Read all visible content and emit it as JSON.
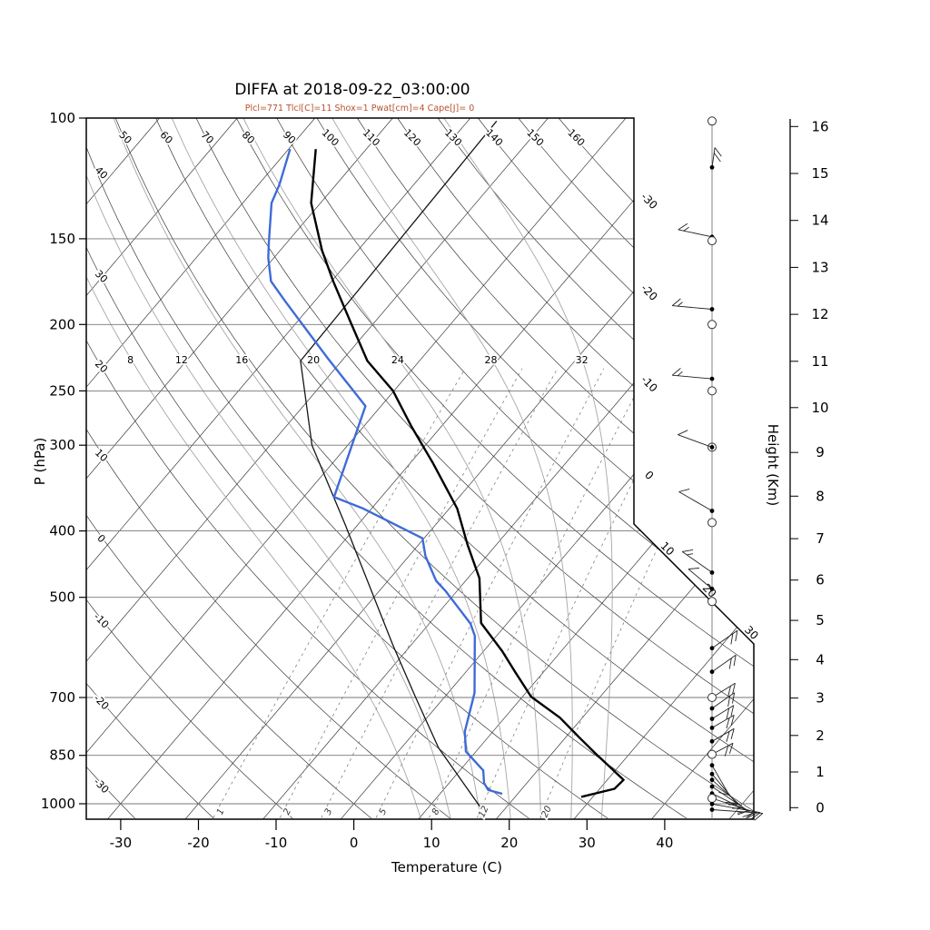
{
  "header": {
    "title": "DIFFA at 2018-09-22_03:00:00",
    "subtitle": "Plcl=771 Tlcl[C]=11 Shox=1 Pwat[cm]=4 Cape[J]= 0"
  },
  "axes": {
    "left_label": "P (hPa)",
    "right_label": "Height (Km)",
    "bottom_label": "Temperature (C)",
    "pressure_ticks": [
      100,
      150,
      200,
      250,
      300,
      400,
      500,
      700,
      850,
      1000
    ],
    "height_ticks_km": [
      0,
      1,
      2,
      3,
      4,
      5,
      6,
      7,
      8,
      9,
      10,
      11,
      12,
      13,
      14,
      15,
      16
    ],
    "temperature_ticks_c": [
      -30,
      -20,
      -10,
      0,
      10,
      20,
      30,
      40
    ]
  },
  "colors": {
    "subtitle": "#b9512f",
    "thin_line": "#3a3a3a",
    "grid_line": "#777777",
    "moist_adiabat": "#a6a6a6",
    "mixing_ratio": "#808080",
    "temperature_profile": "#000000",
    "dewpoint_profile": "#3f6bd8",
    "parcel_line": "#151515",
    "barb": "#222222"
  },
  "chart_data": {
    "type": "line",
    "subtype": "skewt-log-p",
    "pressure_range_hpa": [
      100,
      1050
    ],
    "skew": "isotherms tilt 45deg up-right",
    "isotherms_c": {
      "start": -110,
      "end": 50,
      "step": 10,
      "right_edge_labels": [
        -30,
        -20,
        -10,
        0,
        10,
        20,
        30
      ]
    },
    "dry_adiabats_c": {
      "start": -30,
      "end": 160,
      "step": 10,
      "top_labels": [
        50,
        60,
        70,
        80,
        90,
        100,
        110,
        120,
        130,
        140,
        150,
        160
      ],
      "left_labels": [
        40,
        30,
        20,
        10,
        0,
        -10,
        -20,
        -30
      ]
    },
    "moist_adiabats_c": {
      "values": [
        8,
        12,
        16,
        20,
        24,
        28,
        32
      ],
      "label_pressure_hpa": 225
    },
    "mixing_ratio_g_kg": {
      "values": [
        1,
        2,
        3,
        5,
        8,
        12,
        20
      ]
    },
    "temperature_profile_p_t": [
      [
        977,
        28.5
      ],
      [
        951,
        31.9
      ],
      [
        923,
        32.1
      ],
      [
        887,
        29.2
      ],
      [
        847,
        25.8
      ],
      [
        801,
        21.8
      ],
      [
        749,
        17.1
      ],
      [
        698,
        11.1
      ],
      [
        643,
        6.4
      ],
      [
        599,
        2.4
      ],
      [
        545,
        -3.4
      ],
      [
        469,
        -8.5
      ],
      [
        419,
        -13.7
      ],
      [
        371,
        -19.0
      ],
      [
        319,
        -27.0
      ],
      [
        282,
        -33.8
      ],
      [
        250,
        -40.1
      ],
      [
        226,
        -46.7
      ],
      [
        198,
        -53.2
      ],
      [
        173,
        -59.8
      ],
      [
        156,
        -64.6
      ],
      [
        133,
        -71.2
      ],
      [
        111,
        -76.5
      ]
    ],
    "dewpoint_profile_p_t": [
      [
        967,
        18.0
      ],
      [
        955,
        15.8
      ],
      [
        933,
        14.5
      ],
      [
        894,
        13.0
      ],
      [
        839,
        8.7
      ],
      [
        785,
        6.4
      ],
      [
        689,
        3.4
      ],
      [
        569,
        -2.8
      ],
      [
        546,
        -4.7
      ],
      [
        490,
        -11.4
      ],
      [
        473,
        -13.8
      ],
      [
        435,
        -17.9
      ],
      [
        410,
        -20.2
      ],
      [
        371,
        -31.1
      ],
      [
        357,
        -36.1
      ],
      [
        263,
        -42.0
      ],
      [
        224,
        -52.1
      ],
      [
        185,
        -63.8
      ],
      [
        173,
        -67.8
      ],
      [
        160,
        -70.7
      ],
      [
        152,
        -72.3
      ],
      [
        133,
        -76.3
      ],
      [
        125,
        -77.3
      ],
      [
        111,
        -79.8
      ]
    ],
    "parcel_line_p_t": [
      [
        1009,
        16.5
      ],
      [
        829,
        4.8
      ],
      [
        698,
        -3.8
      ],
      [
        586,
        -12.4
      ],
      [
        392,
        -31.6
      ],
      [
        300,
        -44.6
      ],
      [
        226,
        -55.3
      ],
      [
        101,
        -56.3
      ]
    ],
    "wind_levels": [
      {
        "p": 101,
        "marker": "open"
      },
      {
        "p": 118,
        "marker": "dot",
        "dir": 8,
        "len": 22,
        "full": 2,
        "half": 0
      },
      {
        "p": 149,
        "marker": "dot",
        "dir": -78,
        "len": 38,
        "full": 1,
        "half": 1
      },
      {
        "p": 151,
        "marker": "open"
      },
      {
        "p": 190,
        "marker": "dot",
        "dir": -85,
        "len": 44,
        "full": 1,
        "half": 1
      },
      {
        "p": 200,
        "marker": "open"
      },
      {
        "p": 240,
        "marker": "dot",
        "dir": -85,
        "len": 44,
        "full": 1,
        "half": 1
      },
      {
        "p": 250,
        "marker": "open"
      },
      {
        "p": 302,
        "marker": "circled-dot",
        "dir": -70,
        "len": 40,
        "full": 1,
        "half": 0
      },
      {
        "p": 374,
        "marker": "dot",
        "dir": -60,
        "len": 42,
        "full": 1,
        "half": 0
      },
      {
        "p": 389,
        "marker": "open"
      },
      {
        "p": 460,
        "marker": "dot",
        "dir": -55,
        "len": 40,
        "full": 1,
        "half": 1
      },
      {
        "p": 486,
        "marker": "dot",
        "dir": -50,
        "len": 34,
        "full": 1,
        "half": 0
      },
      {
        "p": 507,
        "marker": "open"
      },
      {
        "p": 593,
        "marker": "dot",
        "dir": 55,
        "len": 34,
        "full": 2,
        "half": 0
      },
      {
        "p": 642,
        "marker": "dot",
        "dir": 55,
        "len": 32,
        "full": 2,
        "half": 0
      },
      {
        "p": 700,
        "marker": "open",
        "dir": 58,
        "len": 30,
        "full": 2,
        "half": 0
      },
      {
        "p": 726,
        "marker": "dot",
        "dir": 55,
        "len": 30,
        "full": 2,
        "half": 0
      },
      {
        "p": 752,
        "marker": "dot",
        "dir": 58,
        "len": 28,
        "full": 2,
        "half": 0
      },
      {
        "p": 775,
        "marker": "dot",
        "dir": 60,
        "len": 28,
        "full": 2,
        "half": 0
      },
      {
        "p": 811,
        "marker": "dot",
        "dir": 60,
        "len": 28,
        "full": 2,
        "half": 0
      },
      {
        "p": 847,
        "marker": "open",
        "dir": 62,
        "len": 26,
        "full": 2,
        "half": 0
      },
      {
        "p": 879,
        "marker": "dot",
        "dir": 150,
        "len": 38,
        "full": 1,
        "half": 0
      },
      {
        "p": 905,
        "marker": "dot",
        "dir": 140,
        "len": 42,
        "full": 1,
        "half": 0
      },
      {
        "p": 923,
        "marker": "dot",
        "dir": 132,
        "len": 46,
        "full": 2,
        "half": 0
      },
      {
        "p": 944,
        "marker": "dot",
        "dir": 124,
        "len": 48,
        "full": 1,
        "half": 0
      },
      {
        "p": 966,
        "marker": "dot",
        "dir": 116,
        "len": 50,
        "full": 2,
        "half": 0
      },
      {
        "p": 982,
        "marker": "open",
        "dir": 108,
        "len": 52,
        "full": 1,
        "half": 0
      },
      {
        "p": 1001,
        "marker": "dot",
        "dir": 100,
        "len": 54,
        "full": 2,
        "half": 0
      },
      {
        "p": 1020,
        "marker": "dot",
        "dir": 94,
        "len": 56,
        "full": 1,
        "half": 0
      }
    ]
  }
}
